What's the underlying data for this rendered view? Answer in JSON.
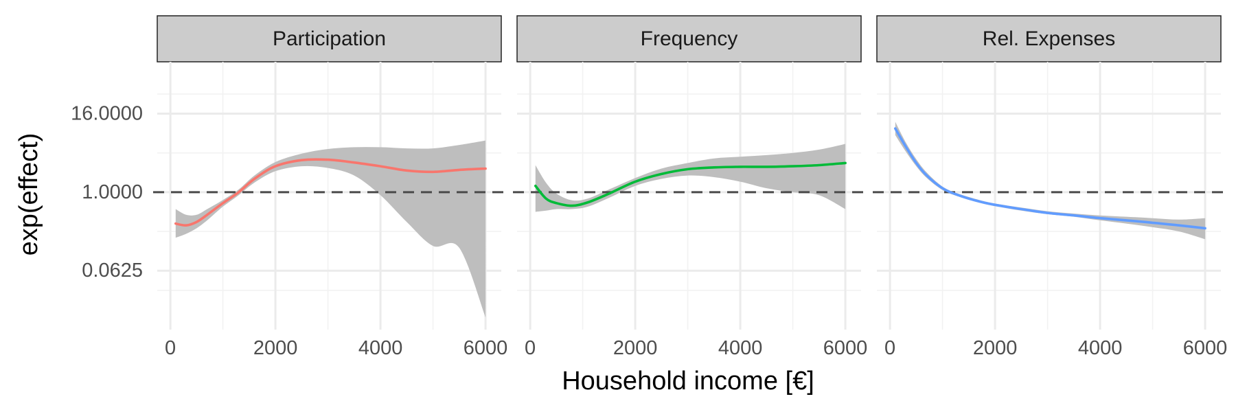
{
  "chart_data": {
    "type": "line",
    "xlabel": "Household income [€]",
    "ylabel": "exp(effect)",
    "y_scale": "log2",
    "xlim": [
      -250,
      6300
    ],
    "ylim": [
      0.0078,
      100
    ],
    "x_ticks": [
      0,
      2000,
      4000,
      6000
    ],
    "x_tick_labels": [
      "0",
      "2000",
      "4000",
      "6000"
    ],
    "y_ticks": [
      0.0625,
      1,
      16
    ],
    "y_tick_labels": [
      "0.0625",
      "1.0000",
      "16.0000"
    ],
    "reference_line": {
      "y": 1,
      "style": "dashed"
    },
    "grid": true,
    "legend": "none",
    "panels": [
      {
        "title": "Participation",
        "color": "#F8766D",
        "series": {
          "x": [
            100,
            300,
            500,
            700,
            1000,
            1300,
            1600,
            2000,
            2500,
            3000,
            3500,
            4000,
            4500,
            5000,
            5500,
            6000
          ],
          "y": [
            0.33,
            0.31,
            0.35,
            0.45,
            0.68,
            1.0,
            1.6,
            2.5,
            3.1,
            3.15,
            2.85,
            2.5,
            2.15,
            2.05,
            2.2,
            2.3
          ],
          "lower": [
            0.2,
            0.23,
            0.28,
            0.37,
            0.6,
            0.9,
            1.4,
            2.1,
            2.5,
            2.35,
            1.8,
            0.9,
            0.35,
            0.15,
            0.14,
            0.012
          ],
          "upper": [
            0.55,
            0.45,
            0.45,
            0.55,
            0.76,
            1.1,
            1.8,
            2.9,
            3.9,
            4.6,
            4.9,
            4.9,
            4.7,
            4.7,
            5.3,
            6.2
          ]
        }
      },
      {
        "title": "Frequency",
        "color": "#00BA38",
        "series": {
          "x": [
            100,
            300,
            500,
            800,
            1100,
            1500,
            2000,
            2500,
            3000,
            3500,
            4000,
            4500,
            5000,
            5500,
            6000
          ],
          "y": [
            1.25,
            0.8,
            0.68,
            0.62,
            0.7,
            0.95,
            1.45,
            1.9,
            2.25,
            2.4,
            2.45,
            2.45,
            2.5,
            2.6,
            2.8
          ],
          "lower": [
            0.5,
            0.52,
            0.55,
            0.55,
            0.6,
            0.82,
            1.25,
            1.6,
            1.8,
            1.7,
            1.45,
            1.15,
            1.0,
            0.9,
            0.55
          ],
          "upper": [
            2.6,
            1.4,
            0.95,
            0.75,
            0.8,
            1.1,
            1.65,
            2.3,
            2.8,
            3.3,
            3.5,
            3.7,
            4.0,
            4.5,
            5.5
          ]
        }
      },
      {
        "title": "Rel. Expenses",
        "color": "#619CFF",
        "series": {
          "x": [
            100,
            300,
            500,
            700,
            1000,
            1300,
            1700,
            2000,
            2500,
            3000,
            3500,
            4000,
            4500,
            5000,
            5500,
            6000
          ],
          "y": [
            9.5,
            5.0,
            2.8,
            1.8,
            1.15,
            0.9,
            0.72,
            0.64,
            0.55,
            0.48,
            0.44,
            0.4,
            0.37,
            0.34,
            0.31,
            0.28
          ],
          "lower": [
            7.5,
            4.2,
            2.5,
            1.65,
            1.08,
            0.86,
            0.69,
            0.61,
            0.52,
            0.46,
            0.42,
            0.37,
            0.33,
            0.29,
            0.25,
            0.19
          ],
          "upper": [
            12.0,
            5.8,
            3.2,
            2.0,
            1.22,
            0.95,
            0.76,
            0.67,
            0.58,
            0.51,
            0.47,
            0.44,
            0.42,
            0.4,
            0.38,
            0.4
          ]
        }
      }
    ]
  }
}
